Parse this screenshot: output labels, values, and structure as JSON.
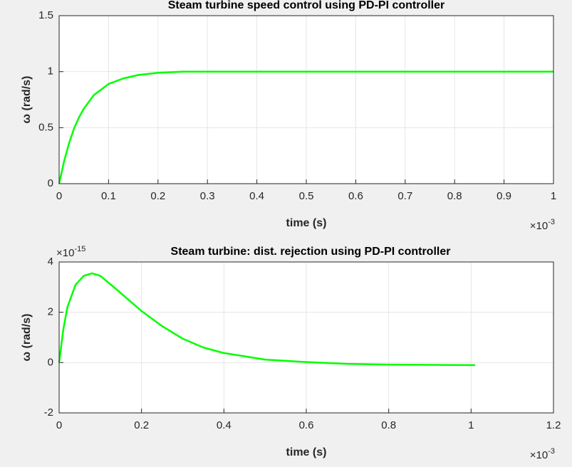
{
  "chart_data": [
    {
      "type": "line",
      "title": "Steam turbine speed control using PD-PI controller",
      "xlabel": "time (s)",
      "ylabel": "ω (rad/s)",
      "x_multiplier": {
        "base": "×10",
        "exponent": "-3"
      },
      "x": [
        0,
        0.01,
        0.02,
        0.03,
        0.04,
        0.05,
        0.07,
        0.1,
        0.13,
        0.16,
        0.2,
        0.25,
        0.3,
        0.4,
        0.5,
        0.6,
        0.7,
        0.8,
        0.9,
        1
      ],
      "values": [
        0,
        0.2,
        0.36,
        0.49,
        0.59,
        0.67,
        0.79,
        0.89,
        0.94,
        0.97,
        0.99,
        1,
        1,
        1,
        1,
        1,
        1,
        1,
        1,
        1
      ],
      "color": "#00ff00",
      "xlim": [
        0,
        1
      ],
      "xticks": [
        0,
        0.1,
        0.2,
        0.3,
        0.4,
        0.5,
        0.6,
        0.7,
        0.8,
        0.9,
        1
      ],
      "ylim": [
        0,
        1.5
      ],
      "yticks": [
        0,
        0.5,
        1,
        1.5
      ],
      "grid": true
    },
    {
      "type": "line",
      "title": "Steam turbine: dist. rejection using PD-PI controller",
      "xlabel": "time (s)",
      "ylabel": "ω (rad/s)",
      "x_multiplier": {
        "base": "×10",
        "exponent": "-3"
      },
      "y_multiplier": {
        "base": "×10",
        "exponent": "-15"
      },
      "x": [
        0,
        0.01,
        0.02,
        0.04,
        0.06,
        0.08,
        0.1,
        0.14,
        0.2,
        0.25,
        0.3,
        0.35,
        0.4,
        0.5,
        0.6,
        0.7,
        0.8,
        0.9,
        1.01
      ],
      "values": [
        0,
        1.3,
        2.2,
        3.1,
        3.45,
        3.55,
        3.45,
        2.9,
        2.05,
        1.45,
        0.95,
        0.6,
        0.38,
        0.12,
        0.02,
        -0.05,
        -0.08,
        -0.09,
        -0.1
      ],
      "color": "#00ff00",
      "xlim": [
        0,
        1.2
      ],
      "xticks": [
        0,
        0.2,
        0.4,
        0.6,
        0.8,
        1,
        1.2
      ],
      "ylim": [
        -2,
        4
      ],
      "yticks": [
        -2,
        0,
        2,
        4
      ],
      "grid": true
    }
  ]
}
